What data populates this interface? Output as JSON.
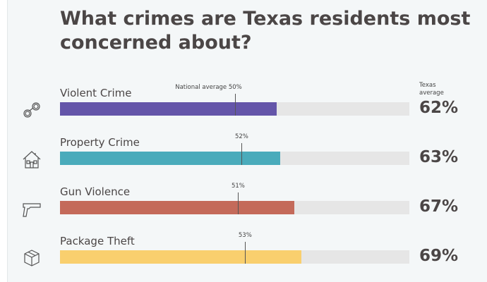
{
  "chart_data": {
    "type": "bar",
    "orientation": "horizontal",
    "title": "What crimes are Texas residents most concerned about?",
    "categories": [
      "Violent Crime",
      "Property Crime",
      "Gun Violence",
      "Package Theft"
    ],
    "series": [
      {
        "name": "Texas average",
        "values": [
          62,
          63,
          67,
          69
        ],
        "labels": [
          "62%",
          "63%",
          "67%",
          "69%"
        ]
      },
      {
        "name": "National average",
        "values": [
          50,
          52,
          51,
          53
        ],
        "labels": [
          "50%",
          "52%",
          "51%",
          "53%"
        ]
      }
    ],
    "national_label": "National average",
    "texas_header": "Texas average",
    "colors": [
      "#6455a9",
      "#4aabbb",
      "#c46a5a",
      "#f9cf6e"
    ],
    "icons": [
      "handcuffs-icon",
      "house-icon",
      "gun-icon",
      "package-icon"
    ],
    "xlim": [
      0,
      100
    ]
  }
}
